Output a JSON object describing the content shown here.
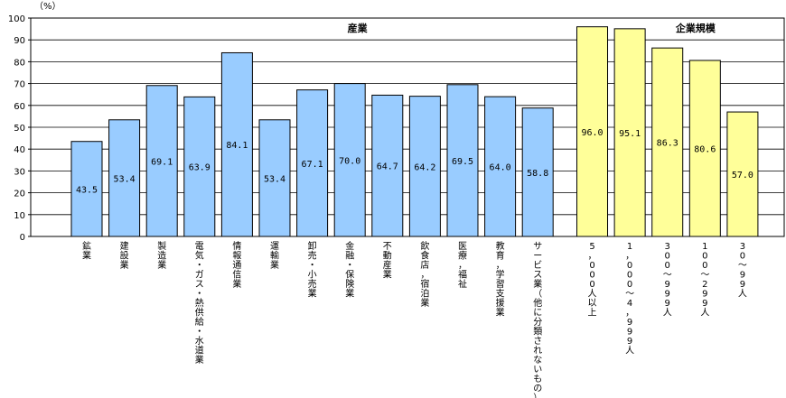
{
  "chart_data": {
    "type": "bar",
    "unit": "（%）",
    "ylim": [
      0,
      100
    ],
    "ytick_step": 10,
    "grid": true,
    "groups": [
      {
        "label": "産業",
        "color": "#99ccff",
        "categories": [
          "鉱業",
          "建設業",
          "製造業",
          "電気・ガス・熱供給・水道業",
          "情報通信業",
          "運輸業",
          "卸売・小売業",
          "金融・保険業",
          "不動産業",
          "飲食店，宿泊業",
          "医療，福祉",
          "教育，学習支援業",
          "サービス業（他に分類されないもの）"
        ],
        "values": [
          43.5,
          53.4,
          69.1,
          63.9,
          84.1,
          53.4,
          67.1,
          70.0,
          64.7,
          64.2,
          69.5,
          64.0,
          58.8
        ],
        "value_labels": [
          "43.5",
          "53.4",
          "69.1",
          "63.9",
          "84.1",
          "53.4",
          "67.1",
          "70.0",
          "64.7",
          "64.2",
          "69.5",
          "64.0",
          "58.8"
        ]
      },
      {
        "label": "企業規模",
        "color": "#ffff99",
        "categories": [
          "5，000人以上",
          "1，000～4，999人",
          "300～999人",
          "100～299人",
          "30～99人"
        ],
        "values": [
          96.0,
          95.1,
          86.3,
          80.6,
          57.0
        ],
        "value_labels": [
          "96.0",
          "95.1",
          "86.3",
          "80.6",
          "57.0"
        ]
      }
    ]
  }
}
